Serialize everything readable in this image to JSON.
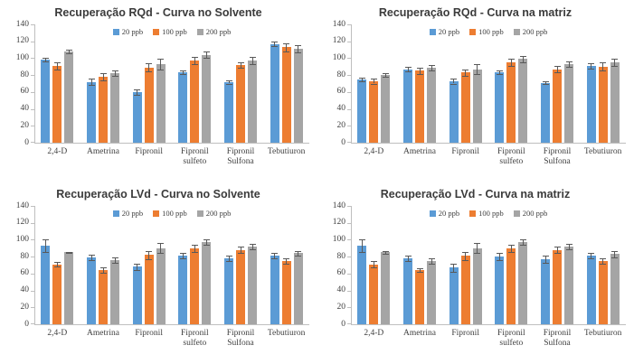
{
  "page": {
    "background": "#ffffff"
  },
  "charts_meta": {
    "series_colors": {
      "blue": "#5B9BD5",
      "orange": "#ED7D31",
      "gray": "#A5A5A5"
    },
    "error_bar_color": "#595959",
    "axis_color": "#BFBFBF",
    "legend_labels": [
      "20 ppb",
      "100 ppb",
      "200 ppb"
    ]
  },
  "chart_data": [
    {
      "type": "bar",
      "title": "Recuperação RQd - Curva no Solvente",
      "categories": [
        "2,4-D",
        "Ametrina",
        "Fipronil",
        "Fipronil sulfeto",
        "Fipronil Sulfona",
        "Tebutiuron"
      ],
      "series": [
        {
          "name": "20 ppb",
          "color": "#5B9BD5",
          "values": [
            98,
            72,
            60,
            83,
            72,
            117
          ],
          "errors": [
            2,
            4,
            3,
            2,
            2,
            3
          ]
        },
        {
          "name": "100 ppb",
          "color": "#ED7D31",
          "values": [
            91,
            78,
            89,
            97,
            92,
            113
          ],
          "errors": [
            4,
            4,
            5,
            4,
            3,
            5
          ]
        },
        {
          "name": "200 ppb",
          "color": "#A5A5A5",
          "values": [
            108,
            82,
            93,
            104,
            97,
            111
          ],
          "errors": [
            2,
            3,
            6,
            4,
            4,
            4
          ]
        }
      ],
      "xlabel": "",
      "ylabel": "",
      "ylim": [
        0,
        140
      ],
      "ytick_step": 20,
      "grid": false,
      "error_bars": true,
      "legend_position": "top-center"
    },
    {
      "type": "bar",
      "title": "Recuperação RQd - Curva na matriz",
      "categories": [
        "2,4-D",
        "Ametrina",
        "Fipronil",
        "Fipronil sulfeto",
        "Fipronil Sulfona",
        "Tebutiuron"
      ],
      "series": [
        {
          "name": "20 ppb",
          "color": "#5B9BD5",
          "values": [
            75,
            87,
            73,
            83,
            71,
            91
          ],
          "errors": [
            2,
            3,
            3,
            2,
            2,
            3
          ]
        },
        {
          "name": "100 ppb",
          "color": "#ED7D31",
          "values": [
            73,
            85,
            83,
            95,
            87,
            90
          ],
          "errors": [
            3,
            4,
            4,
            4,
            4,
            5
          ]
        },
        {
          "name": "200 ppb",
          "color": "#A5A5A5",
          "values": [
            80,
            89,
            87,
            99,
            93,
            95
          ],
          "errors": [
            2,
            3,
            6,
            4,
            3,
            4
          ]
        }
      ],
      "xlabel": "",
      "ylabel": "",
      "ylim": [
        0,
        140
      ],
      "ytick_step": 20,
      "grid": false,
      "error_bars": true,
      "legend_position": "top-center"
    },
    {
      "type": "bar",
      "title": "Recuperação LVd - Curva no Solvente",
      "categories": [
        "2,4-D",
        "Ametrina",
        "Fipronil",
        "Fipronil sulfeto",
        "Fipronil Sulfona",
        "Tebutiuron"
      ],
      "series": [
        {
          "name": "20 ppb",
          "color": "#5B9BD5",
          "values": [
            93,
            79,
            68,
            81,
            78,
            81
          ],
          "errors": [
            7,
            3,
            4,
            3,
            3,
            3
          ]
        },
        {
          "name": "100 ppb",
          "color": "#ED7D31",
          "values": [
            71,
            64,
            82,
            90,
            88,
            75
          ],
          "errors": [
            3,
            3,
            5,
            4,
            4,
            3
          ]
        },
        {
          "name": "200 ppb",
          "color": "#A5A5A5",
          "values": [
            85,
            76,
            90,
            97,
            92,
            84
          ],
          "errors": [
            1,
            3,
            6,
            3,
            3,
            3
          ]
        }
      ],
      "xlabel": "",
      "ylabel": "",
      "ylim": [
        0,
        140
      ],
      "ytick_step": 20,
      "grid": false,
      "error_bars": true,
      "legend_position": "top-center"
    },
    {
      "type": "bar",
      "title": "Recuperação LVd - Curva na matriz",
      "categories": [
        "2,4-D",
        "Ametrina",
        "Fipronil",
        "Fipronil sulfeto",
        "Fipronil Sulfona",
        "Tebutiuron"
      ],
      "series": [
        {
          "name": "20 ppb",
          "color": "#5B9BD5",
          "values": [
            93,
            78,
            67,
            80,
            77,
            81
          ],
          "errors": [
            7,
            3,
            5,
            4,
            4,
            3
          ]
        },
        {
          "name": "100 ppb",
          "color": "#ED7D31",
          "values": [
            71,
            64,
            81,
            90,
            88,
            75
          ],
          "errors": [
            4,
            2,
            5,
            4,
            4,
            3
          ]
        },
        {
          "name": "200 ppb",
          "color": "#A5A5A5",
          "values": [
            85,
            75,
            90,
            97,
            92,
            83
          ],
          "errors": [
            2,
            3,
            6,
            3,
            3,
            4
          ]
        }
      ],
      "xlabel": "",
      "ylabel": "",
      "ylim": [
        0,
        140
      ],
      "ytick_step": 20,
      "grid": false,
      "error_bars": true,
      "legend_position": "top-center"
    }
  ]
}
